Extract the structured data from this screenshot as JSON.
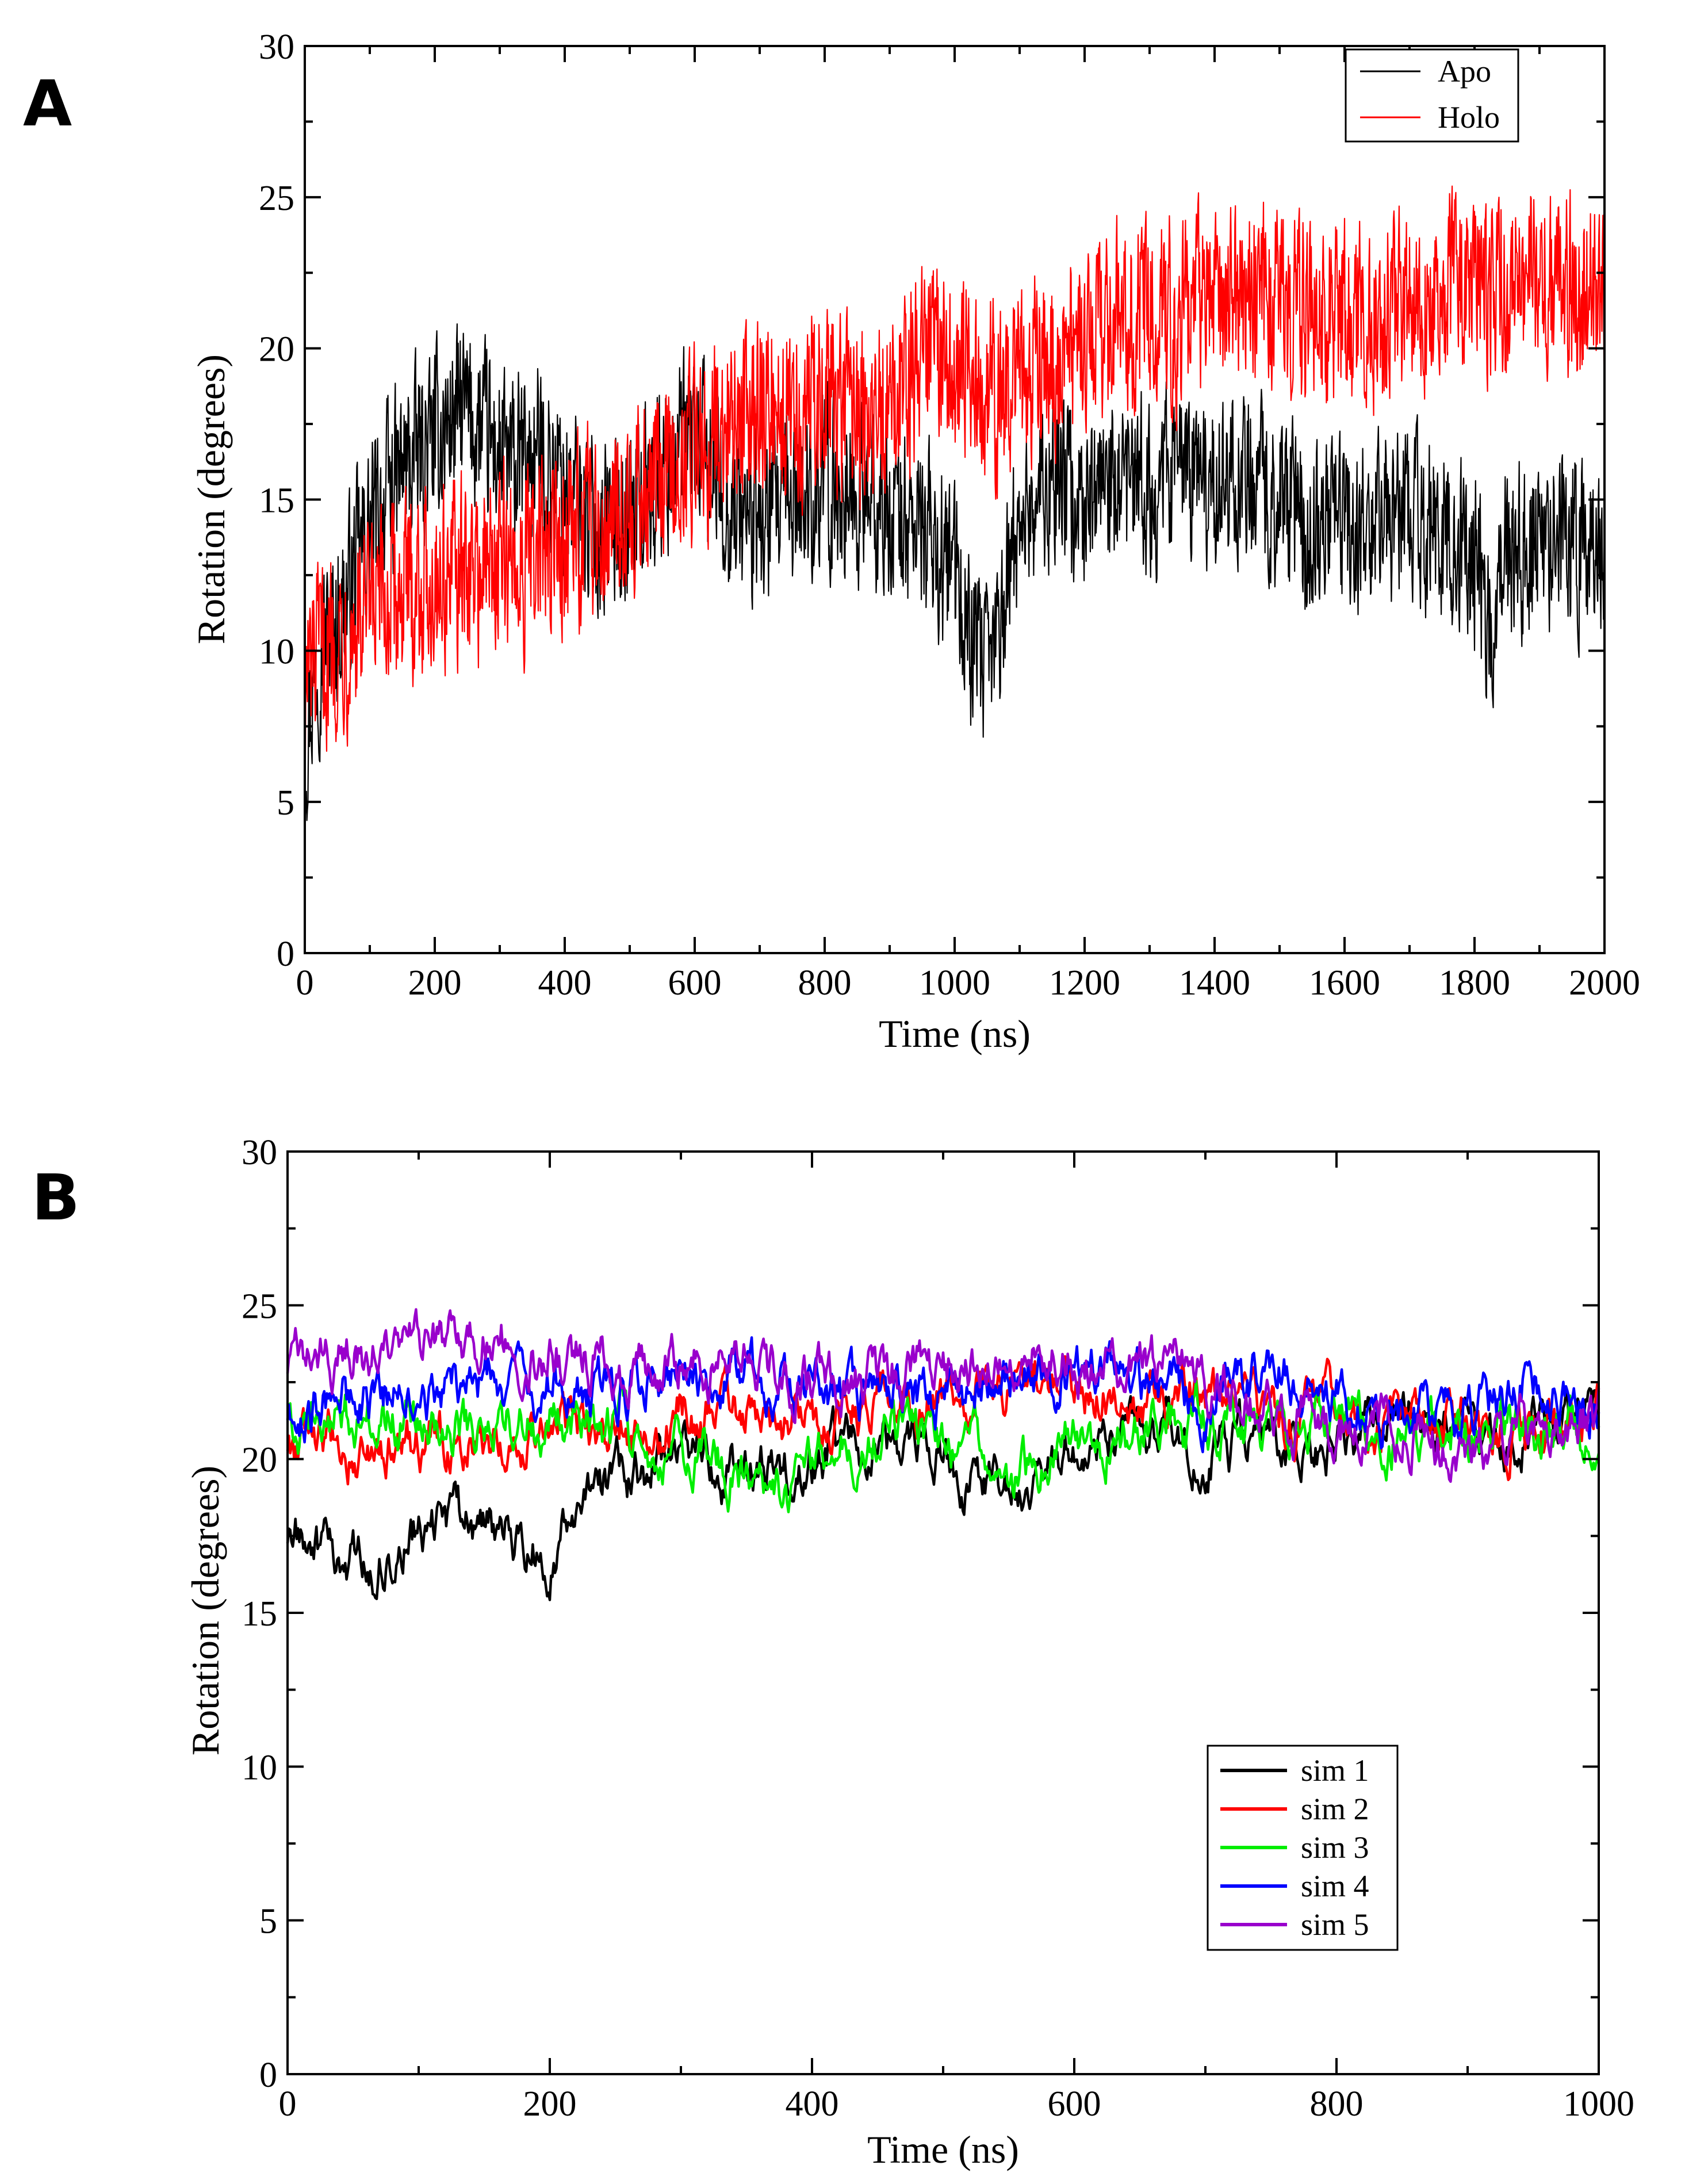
{
  "panels": {
    "a": {
      "letter": "A"
    },
    "b": {
      "letter": "B"
    }
  },
  "chart_data": [
    {
      "type": "line",
      "panel": "A",
      "title": "",
      "xlabel": "Time (ns)",
      "ylabel": "Rotation (degrees)",
      "xlim": [
        0,
        2000
      ],
      "ylim": [
        0,
        30
      ],
      "xticks": [
        0,
        200,
        400,
        600,
        800,
        1000,
        1200,
        1400,
        1600,
        1800,
        2000
      ],
      "yticks": [
        0,
        5,
        10,
        15,
        20,
        25,
        30
      ],
      "grid": false,
      "legend_position": "top-right",
      "series": [
        {
          "name": "Apo",
          "color": "#000000",
          "x": [
            0,
            20,
            50,
            100,
            150,
            200,
            240,
            280,
            320,
            360,
            400,
            450,
            500,
            550,
            600,
            650,
            700,
            750,
            800,
            850,
            900,
            950,
            1000,
            1030,
            1050,
            1080,
            1100,
            1150,
            1200,
            1250,
            1300,
            1350,
            1400,
            1450,
            1500,
            1550,
            1600,
            1650,
            1700,
            1750,
            1800,
            1820,
            1850,
            1900,
            1950,
            2000
          ],
          "values": [
            7,
            10,
            11,
            14,
            16,
            17,
            18,
            17,
            16,
            16.5,
            15.5,
            14,
            14.5,
            16,
            17,
            15,
            14,
            15,
            15.5,
            15,
            14.5,
            14,
            12.5,
            10,
            9,
            12,
            14.5,
            15.5,
            15,
            15,
            15.5,
            16,
            15.5,
            16,
            15,
            14,
            14.5,
            14,
            14.5,
            14,
            13,
            11,
            13,
            14,
            13.5,
            13.5
          ],
          "noise": 1.7
        },
        {
          "name": "Holo",
          "color": "#ff0000",
          "x": [
            0,
            50,
            100,
            150,
            200,
            250,
            300,
            350,
            400,
            450,
            500,
            550,
            600,
            650,
            700,
            750,
            800,
            850,
            900,
            950,
            1000,
            1050,
            1100,
            1150,
            1200,
            1250,
            1300,
            1350,
            1400,
            1450,
            1500,
            1550,
            1600,
            1650,
            1700,
            1750,
            1800,
            1850,
            1900,
            1950,
            2000
          ],
          "values": [
            9,
            10.5,
            11,
            12,
            12.5,
            12.5,
            13,
            13,
            13.5,
            14.5,
            15,
            15.5,
            17,
            17.5,
            18.5,
            18,
            18.5,
            17.5,
            18,
            19.5,
            19.5,
            18.5,
            19,
            19.5,
            20,
            21,
            21.5,
            21,
            21.5,
            22,
            21.5,
            21,
            21,
            21,
            21.5,
            22,
            22.5,
            22,
            22.5,
            22,
            22
          ],
          "noise": 1.8
        }
      ]
    },
    {
      "type": "line",
      "panel": "B",
      "title": "",
      "xlabel": "Time (ns)",
      "ylabel": "Rotation (degrees)",
      "xlim": [
        0,
        1000
      ],
      "ylim": [
        0,
        30
      ],
      "xticks": [
        0,
        200,
        400,
        600,
        800,
        1000
      ],
      "yticks": [
        0,
        5,
        10,
        15,
        20,
        25,
        30
      ],
      "grid": false,
      "legend_position": "lower-right",
      "series": [
        {
          "name": "sim 1",
          "color": "#000000",
          "x": [
            0,
            30,
            60,
            100,
            150,
            200,
            230,
            260,
            300,
            350,
            400,
            450,
            500,
            520,
            560,
            600,
            650,
            700,
            750,
            800,
            850,
            900,
            950,
            1000
          ],
          "values": [
            17.5,
            17,
            16.5,
            17.5,
            18,
            17,
            19,
            19.5,
            20,
            19.5,
            20,
            20.5,
            20.5,
            19,
            19,
            20.5,
            21,
            20.5,
            20.5,
            20.5,
            21.5,
            21,
            21,
            21
          ],
          "noise": 0.6
        },
        {
          "name": "sim 2",
          "color": "#ff0000",
          "x": [
            0,
            50,
            100,
            150,
            200,
            250,
            300,
            350,
            400,
            450,
            500,
            550,
            600,
            650,
            700,
            750,
            800,
            850,
            900,
            950,
            1000
          ],
          "values": [
            20.5,
            20.5,
            20.5,
            20.5,
            21,
            21,
            21.5,
            21.5,
            21,
            21.5,
            22,
            22.5,
            22.5,
            22,
            22,
            21.5,
            21.5,
            21,
            21,
            21,
            21.5
          ],
          "noise": 0.6
        },
        {
          "name": "sim 3",
          "color": "#00ee00",
          "x": [
            0,
            50,
            100,
            150,
            200,
            250,
            300,
            350,
            380,
            400,
            450,
            500,
            550,
            600,
            650,
            700,
            750,
            800,
            850,
            900,
            950,
            1000
          ],
          "values": [
            21.5,
            21.5,
            21,
            21,
            21.5,
            21,
            20.5,
            19.5,
            18.5,
            20,
            21,
            20.5,
            19.5,
            20.5,
            21,
            21.5,
            21,
            21,
            21,
            21,
            21,
            20.5
          ],
          "noise": 0.6
        },
        {
          "name": "sim 4",
          "color": "#0000ff",
          "x": [
            0,
            50,
            100,
            150,
            200,
            250,
            300,
            350,
            400,
            450,
            500,
            550,
            600,
            650,
            700,
            750,
            800,
            850,
            900,
            950,
            1000
          ],
          "values": [
            21.5,
            22,
            22,
            22.5,
            22.5,
            22.5,
            23,
            22.5,
            22,
            22,
            22,
            22.5,
            23,
            22.5,
            22,
            23,
            22,
            21.5,
            21.5,
            22.5,
            22
          ],
          "noise": 0.6
        },
        {
          "name": "sim 5",
          "color": "#9900cc",
          "x": [
            0,
            50,
            100,
            150,
            200,
            250,
            300,
            350,
            400,
            450,
            500,
            550,
            600,
            650,
            700,
            750,
            800,
            850,
            900,
            950,
            1000
          ],
          "values": [
            23,
            23.5,
            23.5,
            24,
            23.5,
            23,
            23,
            23,
            22.5,
            22.5,
            23,
            23.5,
            23.5,
            23,
            22.5,
            21.5,
            21,
            21,
            20.5,
            21,
            21.5
          ],
          "noise": 0.6
        }
      ]
    }
  ]
}
